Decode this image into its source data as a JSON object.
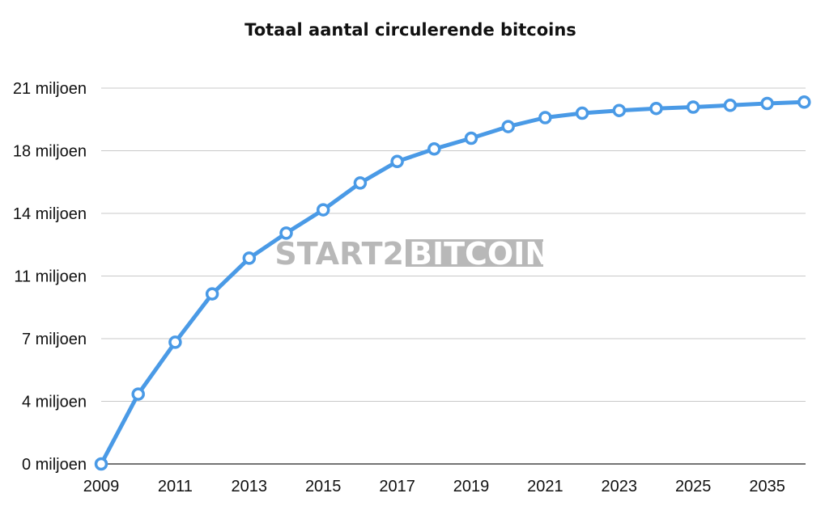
{
  "chart_data": {
    "type": "line",
    "title": "Totaal aantal circulerende bitcoins",
    "xlabel": "",
    "ylabel": "",
    "x_tick_labels": [
      "2009",
      "2011",
      "2013",
      "2015",
      "2017",
      "2019",
      "2021",
      "2023",
      "2025",
      "2035"
    ],
    "y_tick_labels": [
      "0 miljoen",
      "4 miljoen",
      "7 miljoen",
      "11 miljoen",
      "14 miljoen",
      "18 miljoen",
      "21 miljoen"
    ],
    "ylim": [
      0,
      21000000
    ],
    "grid": true,
    "legend": "none",
    "line_color": "#4a9ae6",
    "series": [
      {
        "values": [
          0,
          3900000,
          6800000,
          9500000,
          11500000,
          12900000,
          14200000,
          15700000,
          16900000,
          17600000,
          18200000,
          18850000,
          19350000,
          19600000,
          19750000,
          19860000,
          19940000,
          20040000,
          20140000,
          20220000
        ]
      }
    ]
  },
  "watermark": {
    "part1": "START2",
    "part2": "BITCOIN",
    "color": "#b8b8b8"
  }
}
